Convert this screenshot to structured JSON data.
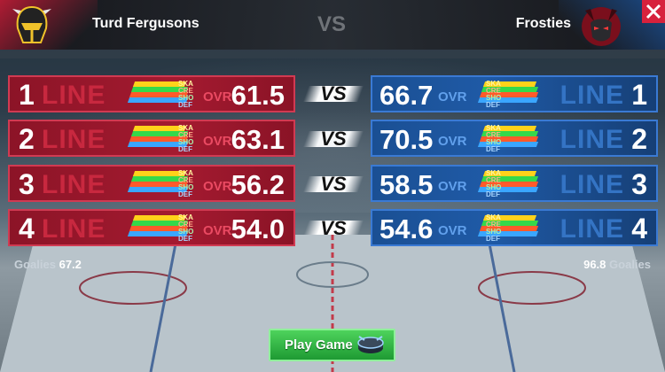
{
  "header": {
    "home_team": "Turd Fergusons",
    "away_team": "Frosties",
    "vs": "VS"
  },
  "home_logo_icon": "knight-helmet-icon",
  "away_logo_icon": "demon-face-icon",
  "close_icon": "close-icon",
  "vs_label": "VS",
  "ovr_label": "OVR",
  "line_label": "LINE",
  "bar_labels": {
    "ska": "SKA",
    "cre": "CRE",
    "sho": "SHO",
    "def": "DEF"
  },
  "colors": {
    "home": "#a41a30",
    "away": "#1f5aa6",
    "ska": "#ffd21a",
    "cre": "#ff5a2a",
    "sho": "#35d94a",
    "def": "#3aa6ff"
  },
  "lines": [
    {
      "number": "1",
      "home_ovr": "61.5",
      "away_ovr": "66.7"
    },
    {
      "number": "2",
      "home_ovr": "63.1",
      "away_ovr": "70.5"
    },
    {
      "number": "3",
      "home_ovr": "56.2",
      "away_ovr": "58.5"
    },
    {
      "number": "4",
      "home_ovr": "54.0",
      "away_ovr": "54.6"
    }
  ],
  "goalies": {
    "label": "Goalies",
    "home_value": "67.2",
    "away_value": "96.8"
  },
  "play_button": {
    "label": "Play Game",
    "icon": "puck-icon"
  }
}
